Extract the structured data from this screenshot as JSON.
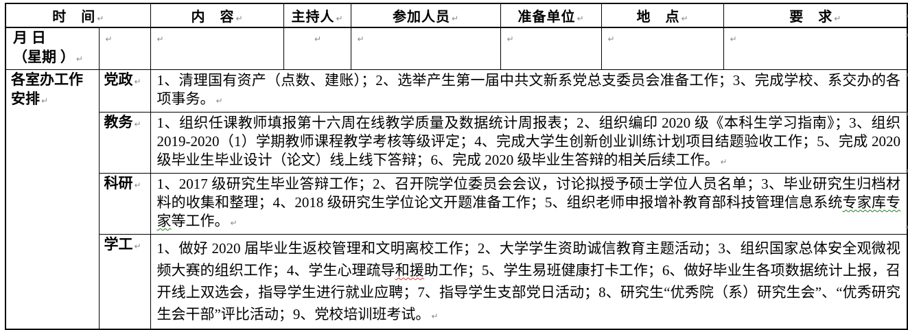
{
  "table": {
    "header": {
      "time": "时　间",
      "content": "内　容",
      "host": "主持人",
      "participants": "参加人员",
      "prep_unit": "准备单位",
      "location": "地　点",
      "requirements": "要　求"
    },
    "date_row": {
      "label_line1": "月 日",
      "label_line2": "（星期 ）"
    },
    "office_row": {
      "label": "各室办工作安排",
      "sections": [
        {
          "name": "党政",
          "content": "1、清理国有资产（点数、建账）；2、选举产生第一届中共文新系党总支委员会准备工作；3、完成学校、系交办的各项事务。"
        },
        {
          "name": "教务",
          "content": "1、组织任课教师填报第十六周在线教学质量及数据统计周报表；2、组织编印 2020 级《本科生学习指南》；3、组织 2019-2020（1）学期教师课程教学考核等级评定；4、完成大学生创新创业训练计划项目结题验收工作；5、完成 2020 级毕业生毕业设计（论文）线上线下答辩；6、完成 2020 级毕业生答辩的相关后续工作。"
        },
        {
          "name": "科研",
          "content": "1、2017 级研究生毕业答辩工作；2、召开院学位委员会会议，讨论拟授予硕士学位人员名单；3、毕业研究生归档材料的收集和整理；4、2018 级研究生学位论文开题准备工作；5、组织老师申报增补教育部科技管理信息系统专家库专家等工作。",
          "squiggle": {
            "text": "专家库专家",
            "color": "green"
          }
        },
        {
          "name": "学工",
          "content": "1、做好 2020 届毕业生返校管理和文明离校工作；2、大学学生资助诚信教育主题活动；3、组织国家总体安全观微视频大赛的组织工作；4、学生心理疏导和援助工作；5、学生易班健康打卡工作；6、做好毕业生各项数据统计上报，召开线上双选会，指导学生进行就业应聘；7、指导学生支部党日活动；8、研究生“优秀院（系）研究生会”、“优秀研究生会干部”评比活动；9、党校培训班考试。",
          "squiggle": {
            "text": "和援",
            "color": "red"
          }
        }
      ]
    },
    "marks": {
      "pilcrow": "↵"
    },
    "colors": {
      "border": "#000000",
      "spellcheck_red": "#e03030",
      "grammar_green": "#1e7d1e",
      "pilcrow_gray": "#8a8a8a"
    }
  }
}
